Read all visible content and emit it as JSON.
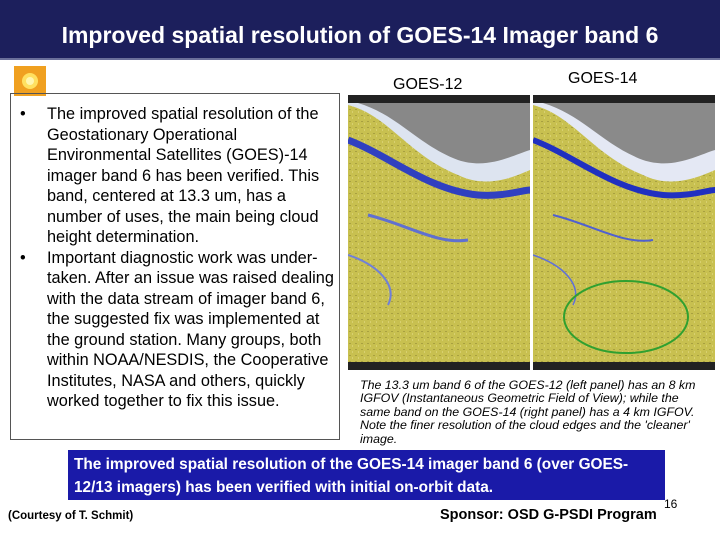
{
  "header": {
    "title": "Improved spatial resolution of GOES-14 Imager band 6"
  },
  "panel_labels": [
    "GOES-12",
    "GOES-14"
  ],
  "bullets": [
    "The improved spatial resolution of the Geostationary Operational Environmental Satellites (GOES)-14 imager band 6 has been verified. This band, centered at 13.3 um, has a number of uses, the main being cloud height determination.",
    "Important diagnostic work was under-taken. After an issue was raised dealing with the data stream of imager band 6, the suggested fix was implemented at the ground station. Many groups, both within NOAA/NESDIS, the Cooperative Institutes, NASA and others, quickly worked together to fix this issue."
  ],
  "caption": "The 13.3 um band 6 of the GOES-12 (left panel) has an 8 km IGFOV (Instantaneous Geometric Field of View); while the same band on the GOES-14 (right panel) has a 4 km IGFOV. Note the finer resolution of the cloud edges and the 'cleaner' image.",
  "highlight": "The improved spatial resolution of the GOES-14 imager band 6 (over GOES-12/13 imagers) has been verified with initial on-orbit data.",
  "credit": "(Courtesy of T. Schmit)",
  "sponsor": "Sponsor: OSD G-PSDI Program",
  "page_number": "16"
}
